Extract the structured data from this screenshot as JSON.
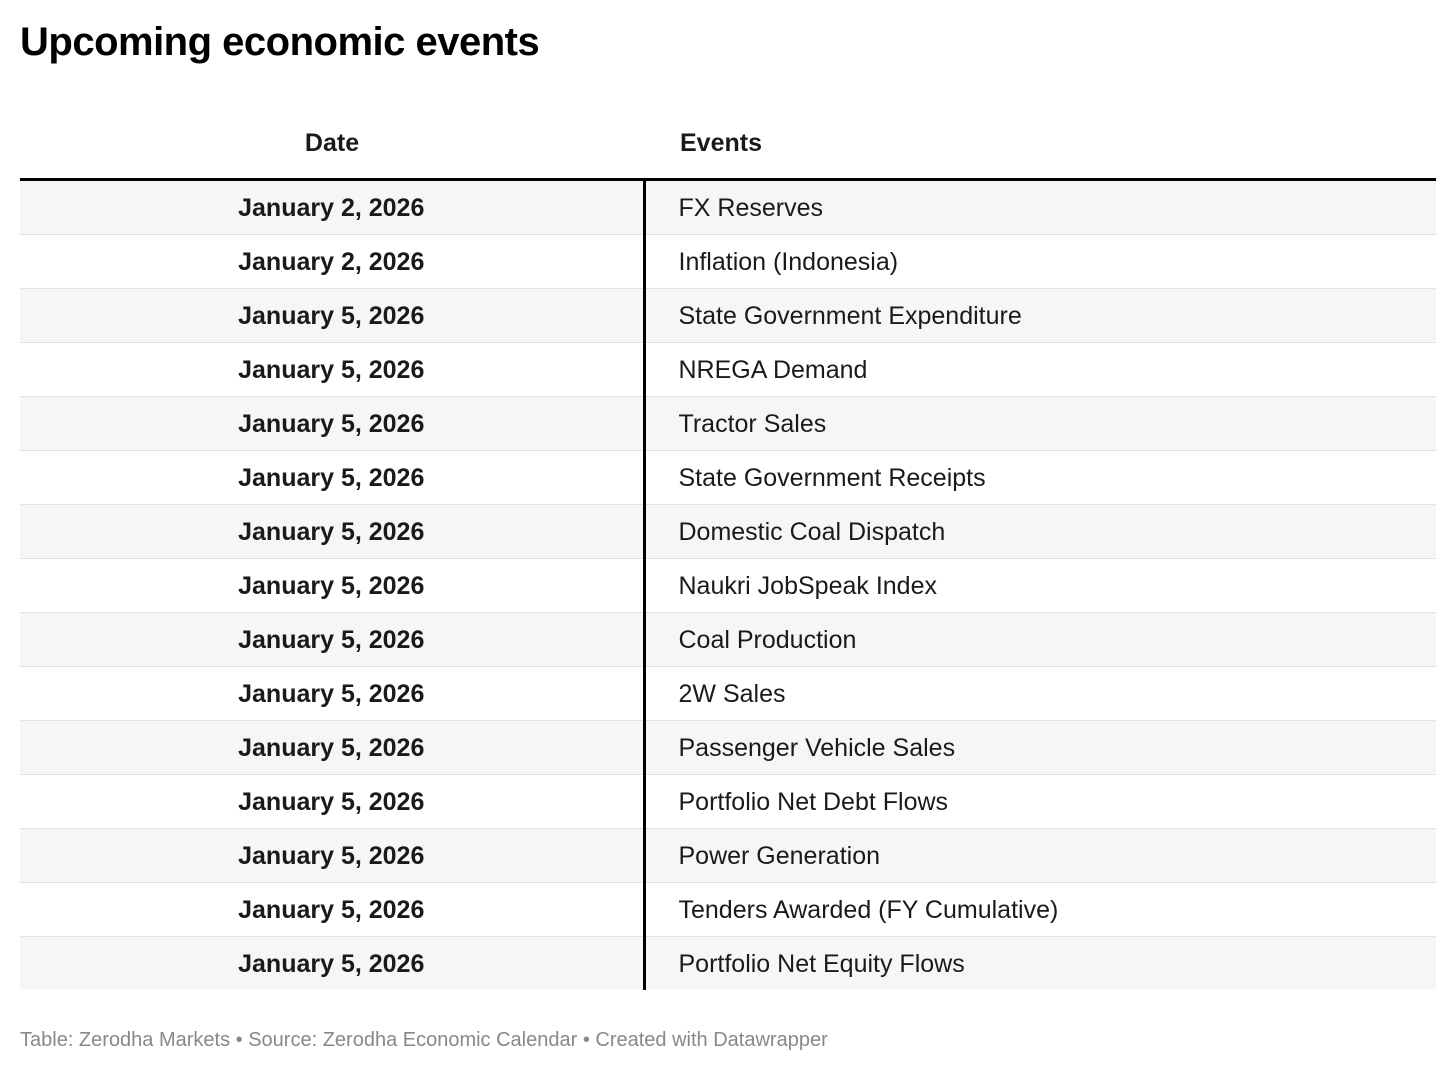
{
  "title": "Upcoming economic events",
  "table": {
    "headers": {
      "date": "Date",
      "events": "Events"
    },
    "rows": [
      {
        "date": "January 2, 2026",
        "event": "FX Reserves"
      },
      {
        "date": "January 2, 2026",
        "event": "Inflation (Indonesia)"
      },
      {
        "date": "January 5, 2026",
        "event": "State Government Expenditure"
      },
      {
        "date": "January 5, 2026",
        "event": "NREGA Demand"
      },
      {
        "date": "January 5, 2026",
        "event": "Tractor Sales"
      },
      {
        "date": "January 5, 2026",
        "event": "State Government Receipts"
      },
      {
        "date": "January 5, 2026",
        "event": "Domestic Coal Dispatch"
      },
      {
        "date": "January 5, 2026",
        "event": "Naukri JobSpeak Index"
      },
      {
        "date": "January 5, 2026",
        "event": "Coal Production"
      },
      {
        "date": "January 5, 2026",
        "event": "2W Sales"
      },
      {
        "date": "January 5, 2026",
        "event": "Passenger Vehicle Sales"
      },
      {
        "date": "January 5, 2026",
        "event": "Portfolio Net Debt Flows"
      },
      {
        "date": "January 5, 2026",
        "event": "Power Generation"
      },
      {
        "date": "January 5, 2026",
        "event": "Tenders Awarded (FY Cumulative)"
      },
      {
        "date": "January 5, 2026",
        "event": "Portfolio Net Equity Flows"
      }
    ]
  },
  "footer": {
    "text": "Table: Zerodha Markets • Source: Zerodha Economic Calendar • Created with Datawrapper"
  },
  "colors": {
    "title_text": "#000000",
    "body_text": "#1a1a1a",
    "header_rule": "#000000",
    "column_divider": "#000000",
    "row_alt_background": "#f5f6f6",
    "row_separator": "#e3e3e3",
    "footer_text": "#888888"
  },
  "chart_data": {
    "type": "table",
    "title": "Upcoming economic events",
    "columns": [
      "Date",
      "Events"
    ],
    "rows": [
      [
        "January 2, 2026",
        "FX Reserves"
      ],
      [
        "January 2, 2026",
        "Inflation (Indonesia)"
      ],
      [
        "January 5, 2026",
        "State Government Expenditure"
      ],
      [
        "January 5, 2026",
        "NREGA Demand"
      ],
      [
        "January 5, 2026",
        "Tractor Sales"
      ],
      [
        "January 5, 2026",
        "State Government Receipts"
      ],
      [
        "January 5, 2026",
        "Domestic Coal Dispatch"
      ],
      [
        "January 5, 2026",
        "Naukri JobSpeak Index"
      ],
      [
        "January 5, 2026",
        "Coal Production"
      ],
      [
        "January 5, 2026",
        "2W Sales"
      ],
      [
        "January 5, 2026",
        "Passenger Vehicle Sales"
      ],
      [
        "January 5, 2026",
        "Portfolio Net Debt Flows"
      ],
      [
        "January 5, 2026",
        "Power Generation"
      ],
      [
        "January 5, 2026",
        "Tenders Awarded (FY Cumulative)"
      ],
      [
        "January 5, 2026",
        "Portfolio Net Equity Flows"
      ]
    ],
    "layout": {
      "date_column_alignment": "center",
      "events_column_alignment": "left",
      "alternating_row_shading": true,
      "footer": "Table: Zerodha Markets • Source: Zerodha Economic Calendar • Created with Datawrapper"
    }
  }
}
